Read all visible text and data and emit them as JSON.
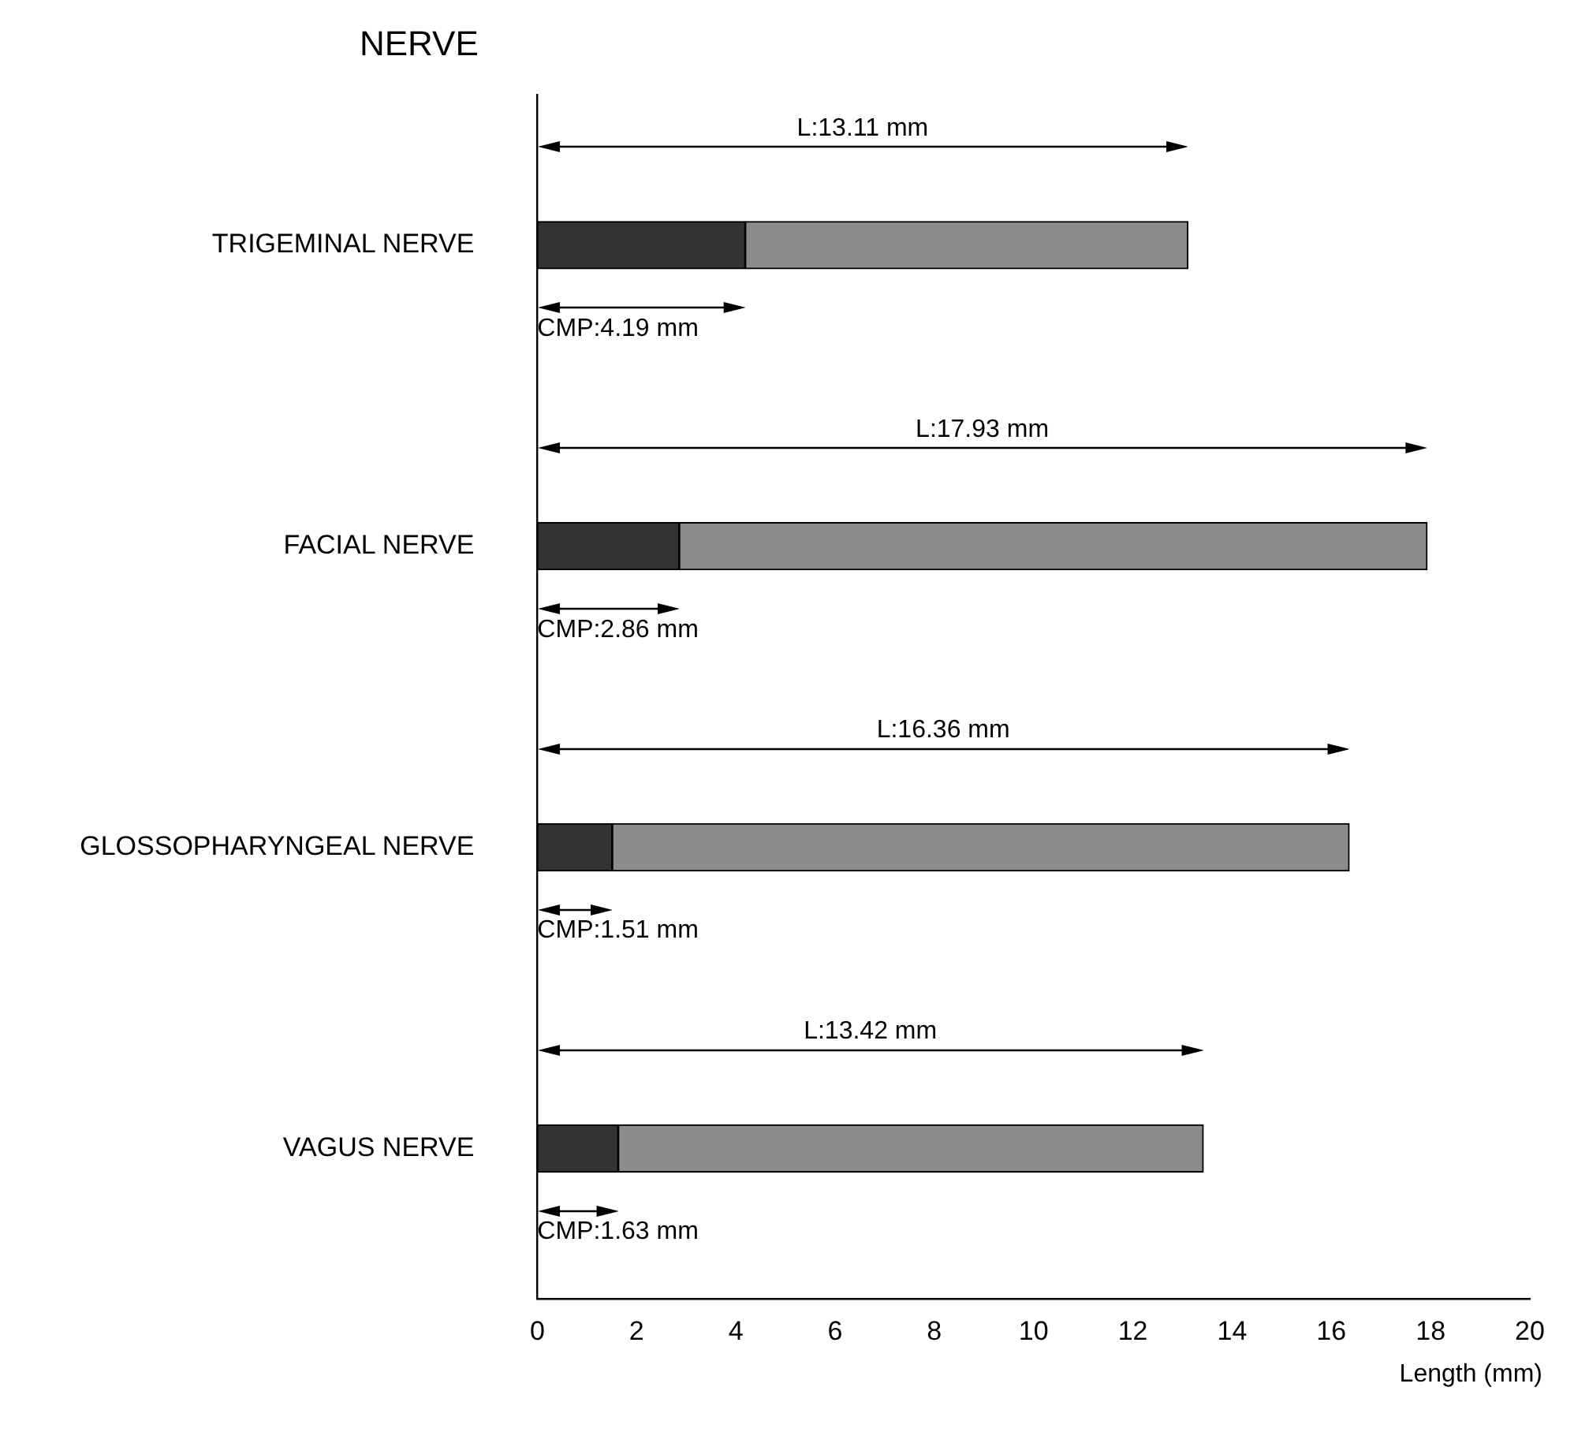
{
  "chart_data": {
    "type": "bar",
    "orientation": "horizontal",
    "stacked": true,
    "ylabel": "NERVE",
    "xlabel": "Length (mm)",
    "categories": [
      "TRIGEMINAL NERVE",
      "FACIAL NERVE",
      "GLOSSOPHARYNGEAL NERVE",
      "VAGUS NERVE"
    ],
    "series": [
      {
        "color": "#333333",
        "values": [
          4.19,
          2.86,
          1.51,
          1.63
        ]
      },
      {
        "color": "#8c8c8c",
        "values": [
          8.92,
          15.07,
          14.85,
          11.79
        ]
      }
    ],
    "xlim": [
      0,
      20
    ],
    "xticks": [
      0,
      2,
      4,
      6,
      8,
      10,
      12,
      14,
      16,
      18,
      20
    ],
    "grid": false,
    "legend": false,
    "annotations": [
      "L:13.11 mm",
      "CMP:4.19 mm",
      "L:17.93 mm",
      "CMP:2.86 mm",
      "L:16.36 mm",
      "CMP:1.51 mm",
      "L:13.42 mm",
      "CMP:1.63 mm"
    ]
  }
}
